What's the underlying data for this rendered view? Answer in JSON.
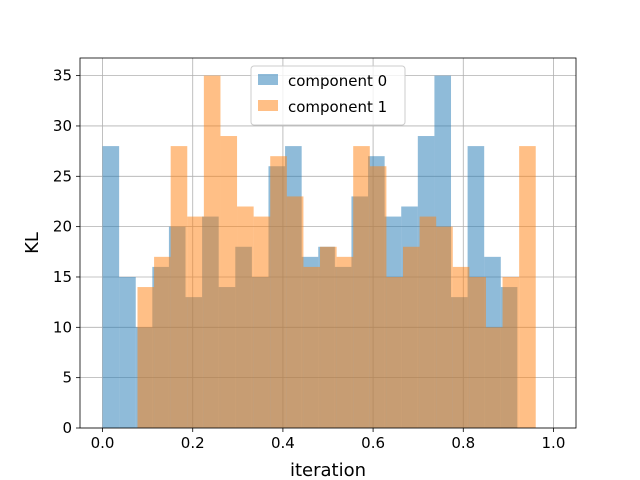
{
  "chart_data": {
    "type": "bar",
    "subtype": "histogram-overlay",
    "title": "",
    "xlabel": "iteration",
    "ylabel": "KL",
    "xlim": [
      -0.05,
      1.05
    ],
    "ylim": [
      0,
      36.75
    ],
    "x_ticks": [
      0.0,
      0.2,
      0.4,
      0.6,
      0.8,
      1.0
    ],
    "x_tick_labels": [
      "0.0",
      "0.2",
      "0.4",
      "0.6",
      "0.8",
      "1.0"
    ],
    "y_ticks": [
      0,
      5,
      10,
      15,
      20,
      25,
      30,
      35
    ],
    "y_tick_labels": [
      "0",
      "5",
      "10",
      "15",
      "20",
      "25",
      "30",
      "35"
    ],
    "grid": true,
    "legend_position": "top-center",
    "series": [
      {
        "name": "component 0",
        "color": "#1f77b4",
        "alpha": 0.5,
        "bin_start": 0.0,
        "bin_width": 0.0368,
        "values": [
          28,
          15,
          10,
          16,
          20,
          13,
          21,
          14,
          18,
          15,
          26,
          28,
          17,
          18,
          16,
          23,
          27,
          21,
          22,
          29,
          35,
          13,
          28,
          17,
          14
        ]
      },
      {
        "name": "component 1",
        "color": "#ff7f0e",
        "alpha": 0.5,
        "bin_start": 0.0775,
        "bin_width": 0.0368,
        "values": [
          14,
          17,
          28,
          21,
          35,
          29,
          22,
          21,
          27,
          23,
          16,
          18,
          17,
          28,
          26,
          15,
          18,
          21,
          20,
          16,
          15,
          10,
          15,
          28
        ]
      }
    ]
  }
}
